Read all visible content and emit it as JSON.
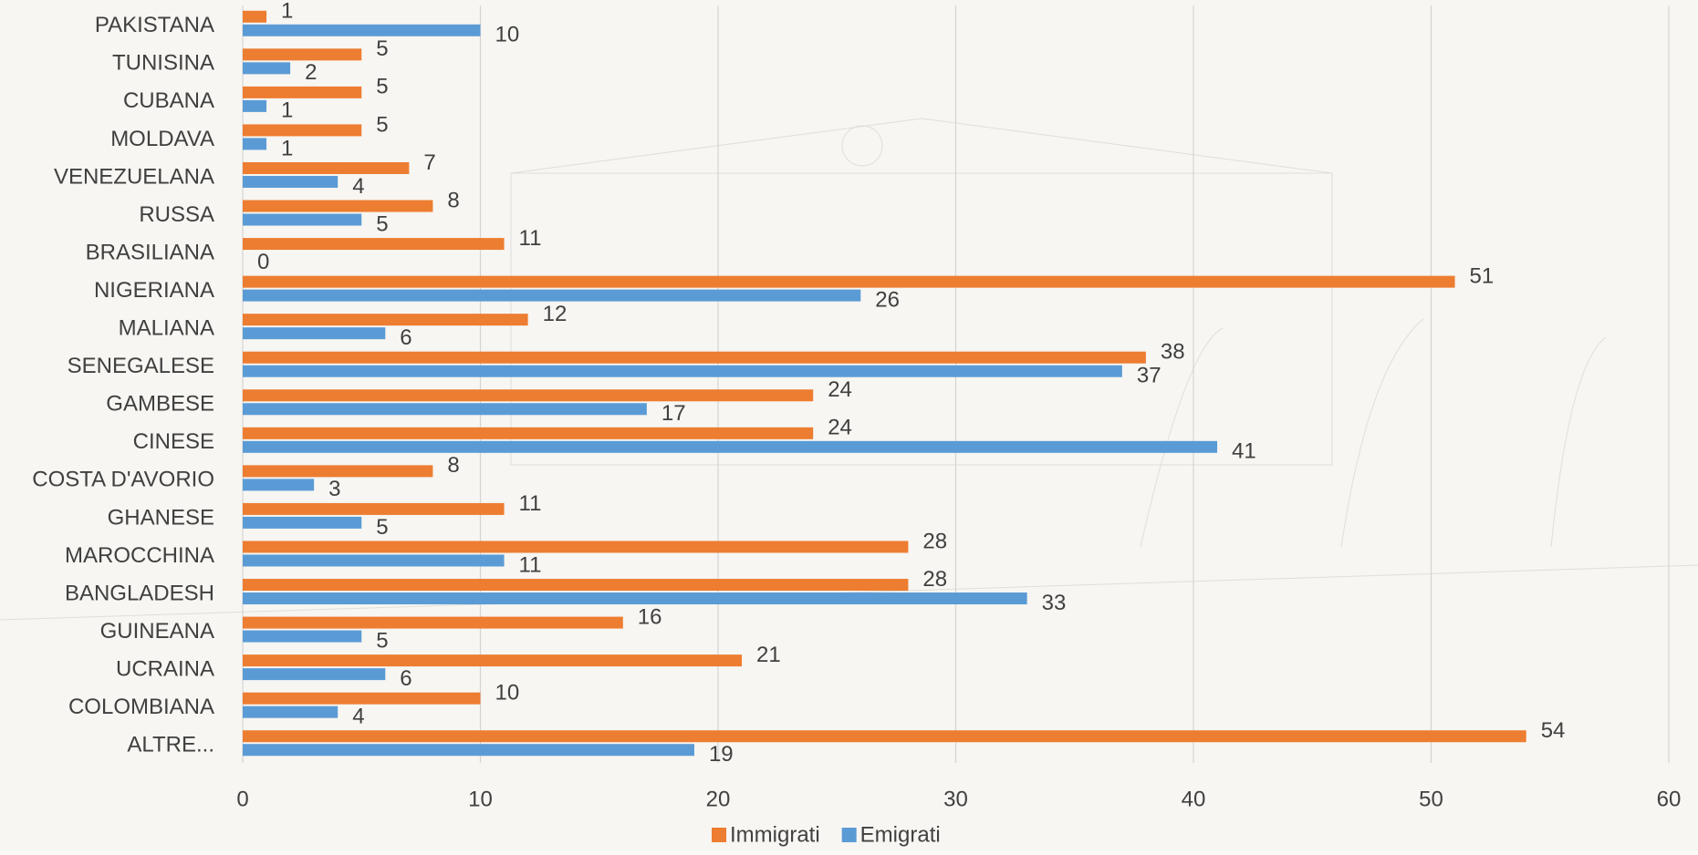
{
  "chart_data": {
    "type": "bar",
    "orientation": "horizontal",
    "categories": [
      "PAKISTANA",
      "TUNISINA",
      "CUBANA",
      "MOLDAVA",
      "VENEZUELANA",
      "RUSSA",
      "BRASILIANA",
      "NIGERIANA",
      "MALIANA",
      "SENEGALESE",
      "GAMBESE",
      "CINESE",
      "COSTA D'AVORIO",
      "GHANESE",
      "MAROCCHINA",
      "BANGLADESH",
      "GUINEANA",
      "UCRAINA",
      "COLOMBIANA",
      "ALTRE..."
    ],
    "series": [
      {
        "name": "Immigrati",
        "color": "#ed7d31",
        "values": [
          1,
          5,
          5,
          5,
          7,
          8,
          11,
          51,
          12,
          38,
          24,
          24,
          8,
          11,
          28,
          28,
          16,
          21,
          10,
          54
        ]
      },
      {
        "name": "Emigrati",
        "color": "#5b9bd5",
        "values": [
          10,
          2,
          1,
          1,
          4,
          5,
          0,
          26,
          6,
          37,
          17,
          41,
          3,
          5,
          11,
          33,
          5,
          6,
          4,
          19
        ]
      }
    ],
    "xlim": [
      0,
      60
    ],
    "xticks": [
      0,
      10,
      20,
      30,
      40,
      50,
      60
    ],
    "grid": true,
    "legend": "bottom"
  }
}
